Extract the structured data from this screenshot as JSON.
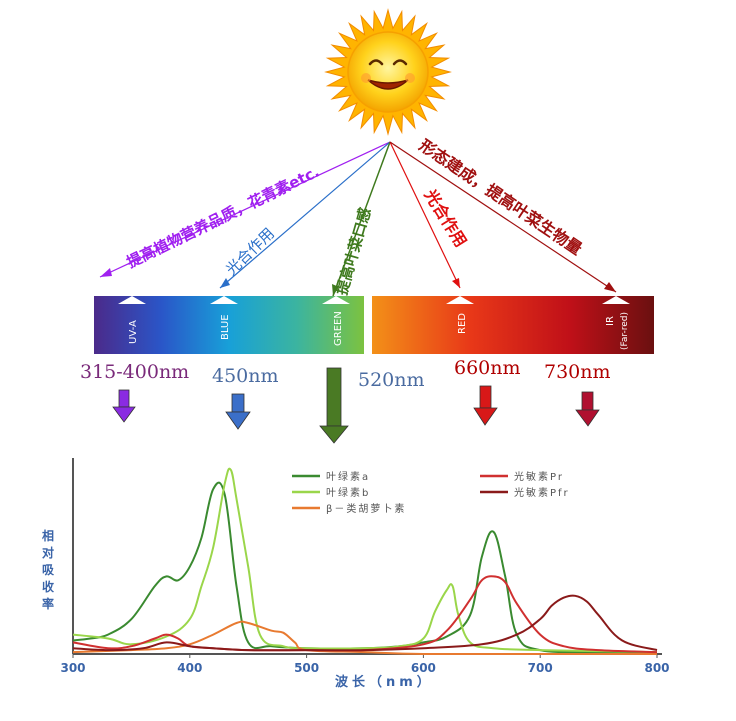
{
  "rays": [
    {
      "label": "提高植物营养品质，花青素etc.",
      "color": "#a020f0"
    },
    {
      "label": "光合作用",
      "color": "#2a6fc9"
    },
    {
      "label": "提高叶菜口感",
      "color": "#3f7a1e"
    },
    {
      "label": "光合作用",
      "color": "#e01010"
    },
    {
      "label": "形态建成，提高叶菜生物量",
      "color": "#a01010"
    }
  ],
  "spectrum_bands": [
    {
      "label": "UV-A",
      "sub": ""
    },
    {
      "label": "BLUE",
      "sub": ""
    },
    {
      "label": "GREEN",
      "sub": ""
    },
    {
      "label": "RED",
      "sub": ""
    },
    {
      "label": "IR",
      "sub": "(Far-red)"
    }
  ],
  "wavelengths": [
    {
      "label": "315-400nm",
      "color": "#7a2a7a",
      "arrow_color": "#8a2be2"
    },
    {
      "label": "450nm",
      "color": "#4a6ba0",
      "arrow_color": "#3b6fc9"
    },
    {
      "label": "520nm",
      "color": "#4a6ba0",
      "arrow_color": "#4a7a24"
    },
    {
      "label": "660nm",
      "color": "#b00000",
      "arrow_color": "#d81818"
    },
    {
      "label": "730nm",
      "color": "#b00000",
      "arrow_color": "#b01030"
    }
  ],
  "chart_data": {
    "type": "line",
    "xlabel": "波长（nm）",
    "ylabel": "相对吸收率",
    "xlim": [
      300,
      800
    ],
    "xticks": [
      "300",
      "400",
      "500",
      "600",
      "700",
      "800"
    ],
    "series": [
      {
        "name": "叶绿素a",
        "color": "#3a8a30",
        "x": [
          300,
          315,
          330,
          350,
          370,
          380,
          390,
          400,
          410,
          420,
          430,
          440,
          450,
          470,
          500,
          550,
          580,
          600,
          620,
          640,
          650,
          660,
          670,
          680,
          700,
          750,
          800
        ],
        "y": [
          0.07,
          0.08,
          0.1,
          0.18,
          0.35,
          0.4,
          0.38,
          0.45,
          0.6,
          0.85,
          0.82,
          0.35,
          0.06,
          0.04,
          0.03,
          0.03,
          0.04,
          0.06,
          0.09,
          0.2,
          0.5,
          0.63,
          0.4,
          0.1,
          0.02,
          0.01,
          0.01
        ]
      },
      {
        "name": "叶绿素b",
        "color": "#9ad64a",
        "x": [
          300,
          330,
          350,
          380,
          400,
          410,
          420,
          430,
          435,
          440,
          450,
          460,
          480,
          500,
          550,
          580,
          600,
          610,
          620,
          625,
          630,
          640,
          660,
          700,
          800
        ],
        "y": [
          0.1,
          0.08,
          0.05,
          0.09,
          0.18,
          0.35,
          0.55,
          0.88,
          0.95,
          0.8,
          0.45,
          0.1,
          0.04,
          0.03,
          0.03,
          0.04,
          0.08,
          0.22,
          0.33,
          0.35,
          0.2,
          0.06,
          0.03,
          0.02,
          0.01
        ]
      },
      {
        "name": "β－类胡萝卜素",
        "color": "#e87a30",
        "x": [
          300,
          350,
          380,
          400,
          420,
          440,
          450,
          470,
          480,
          490,
          500,
          550,
          600,
          700,
          800
        ],
        "y": [
          0.01,
          0.02,
          0.03,
          0.05,
          0.1,
          0.16,
          0.16,
          0.12,
          0.11,
          0.06,
          0.02,
          0.01,
          0.0,
          0.0,
          0.0
        ]
      },
      {
        "name": "光敏素Pr",
        "color": "#d03030",
        "x": [
          300,
          330,
          350,
          370,
          380,
          390,
          400,
          420,
          450,
          500,
          550,
          600,
          620,
          640,
          650,
          660,
          670,
          680,
          700,
          720,
          750,
          800
        ],
        "y": [
          0.06,
          0.03,
          0.04,
          0.08,
          0.1,
          0.08,
          0.04,
          0.03,
          0.02,
          0.02,
          0.02,
          0.05,
          0.12,
          0.28,
          0.38,
          0.4,
          0.37,
          0.26,
          0.1,
          0.04,
          0.02,
          0.01
        ]
      },
      {
        "name": "光敏素Pfr",
        "color": "#8a1a1a",
        "x": [
          300,
          330,
          360,
          380,
          400,
          420,
          450,
          500,
          550,
          600,
          650,
          680,
          700,
          710,
          720,
          730,
          740,
          750,
          770,
          800
        ],
        "y": [
          0.03,
          0.02,
          0.03,
          0.06,
          0.04,
          0.03,
          0.02,
          0.02,
          0.02,
          0.03,
          0.05,
          0.1,
          0.18,
          0.25,
          0.29,
          0.3,
          0.27,
          0.2,
          0.07,
          0.02
        ]
      }
    ]
  }
}
